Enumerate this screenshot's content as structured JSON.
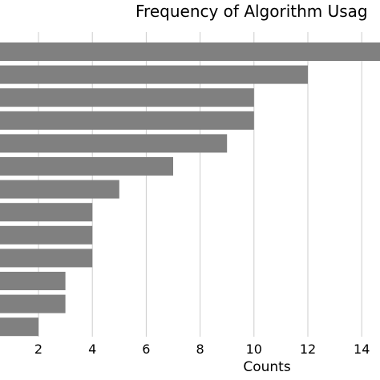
{
  "chart_data": {
    "type": "bar",
    "orientation": "horizontal",
    "title": "Frequency of Algorithm Usag",
    "xlabel": "Counts",
    "ylabel": "",
    "values": [
      15,
      12,
      10,
      10,
      9,
      7,
      5,
      4,
      4,
      4,
      3,
      3,
      2
    ],
    "xlim": [
      0.6,
      15.2
    ],
    "xticks": [
      2,
      4,
      6,
      8,
      10,
      12,
      14
    ],
    "grid": "vertical",
    "bar_color": "#808080",
    "grid_color": "#cccccc"
  }
}
